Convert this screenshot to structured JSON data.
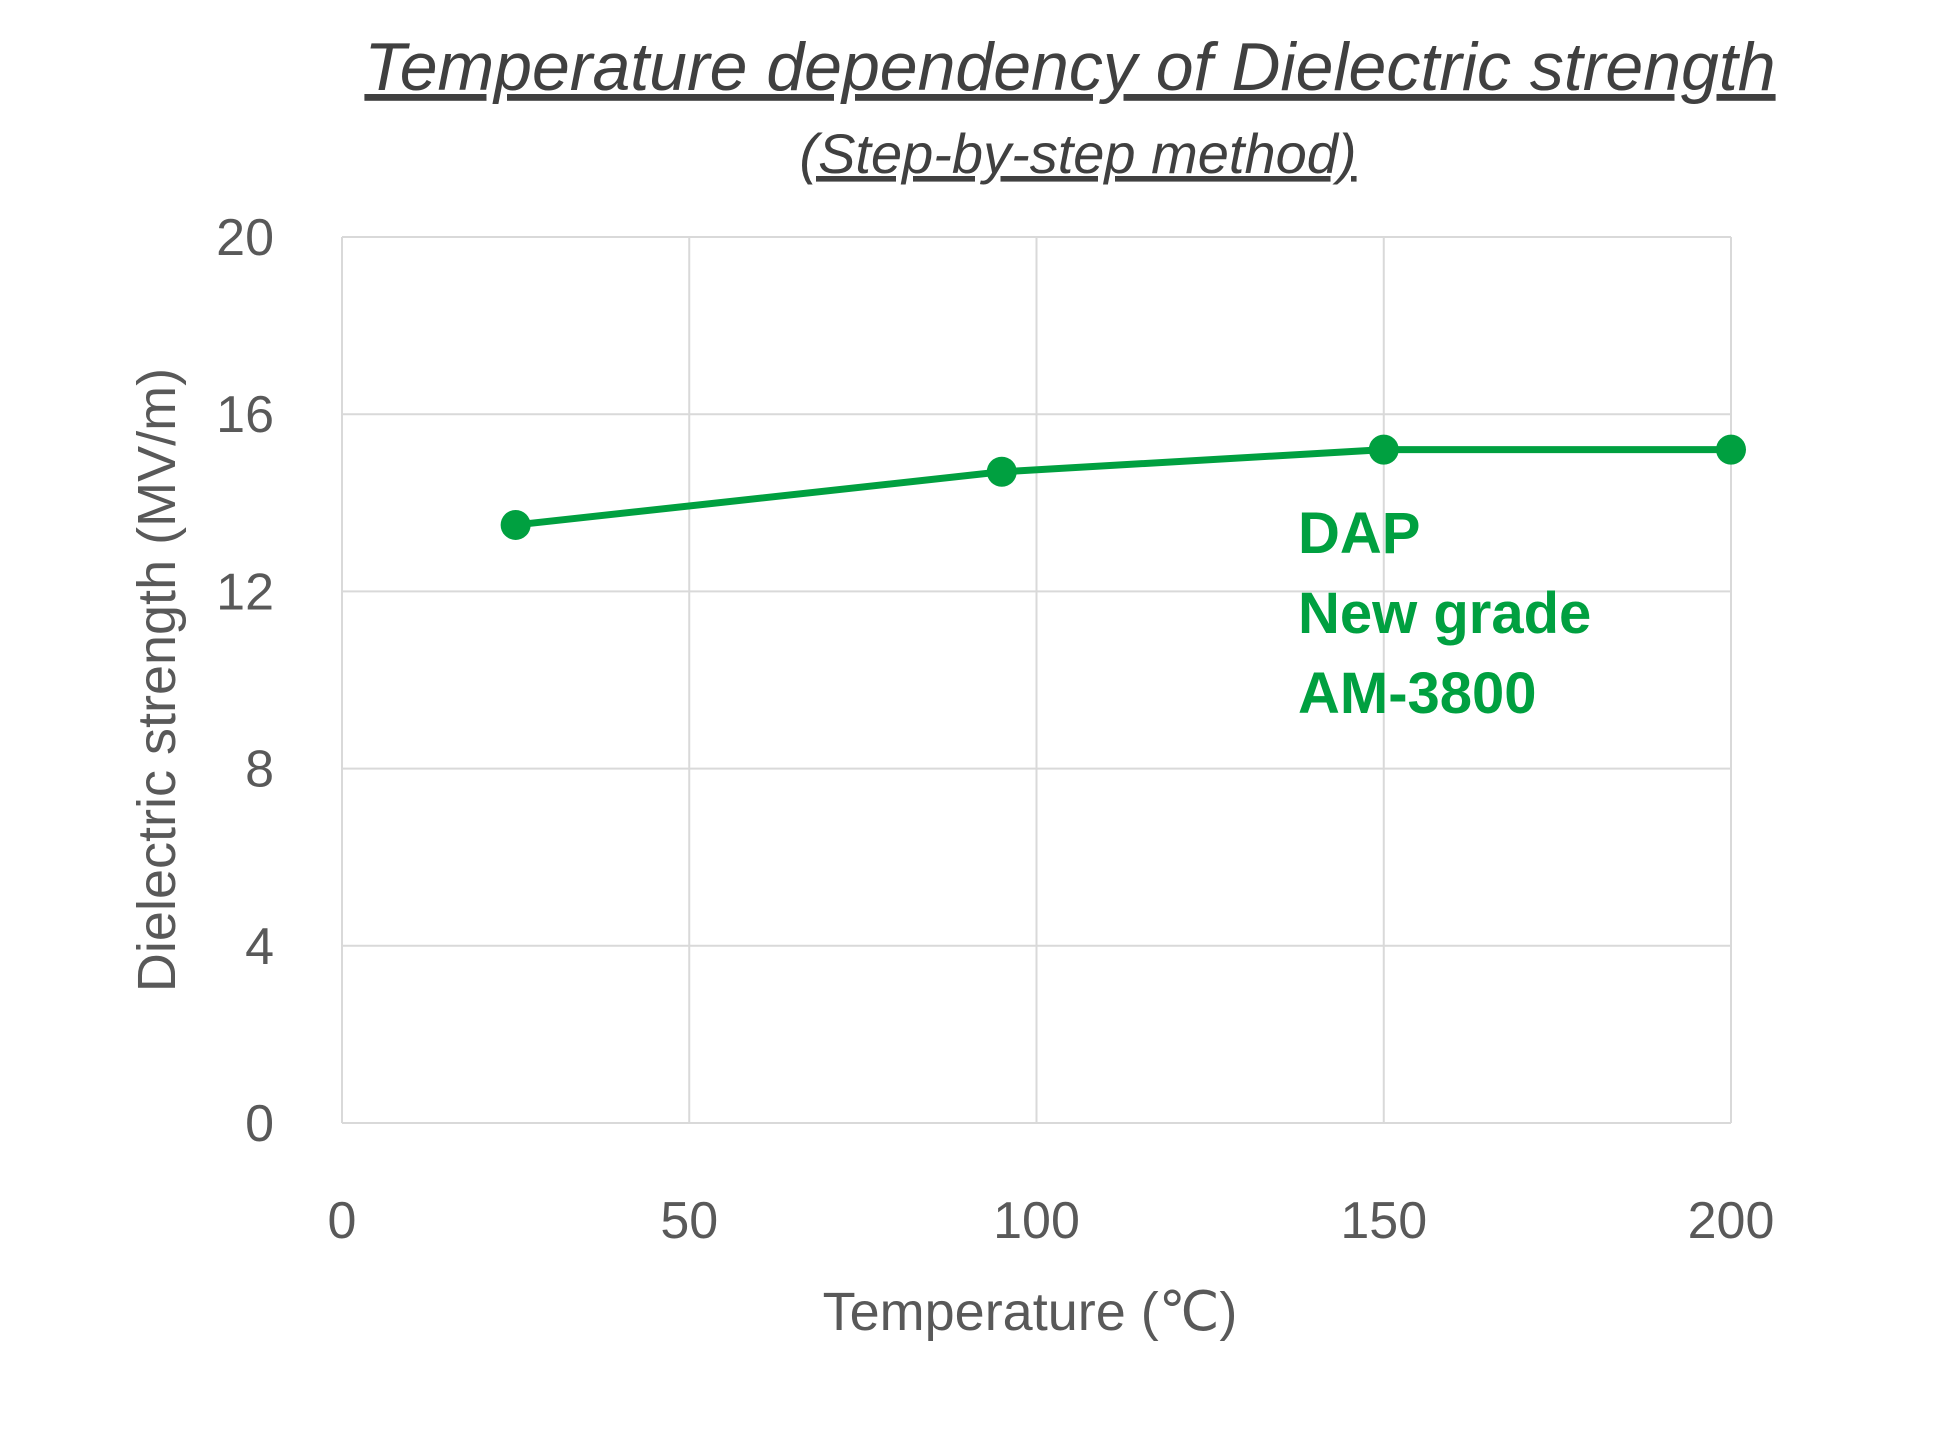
{
  "chart_data": {
    "type": "line",
    "title": "Temperature dependency of Dielectric strength",
    "subtitle": "(Step-by-step method)",
    "xlabel": "Temperature (℃)",
    "ylabel": "Dielectric strength (MV/m)",
    "xlim": [
      0,
      200
    ],
    "ylim": [
      0,
      20
    ],
    "xticks": [
      0,
      50,
      100,
      150,
      200
    ],
    "yticks": [
      0,
      4,
      8,
      12,
      16,
      20
    ],
    "grid": true,
    "series": [
      {
        "color": "#00A040",
        "x": [
          25,
          95,
          150,
          200
        ],
        "y": [
          13.5,
          14.7,
          15.2,
          15.2
        ]
      }
    ],
    "annotation": [
      "DAP",
      "New grade",
      "AM-3800"
    ],
    "annotation_color": "#00A040"
  }
}
